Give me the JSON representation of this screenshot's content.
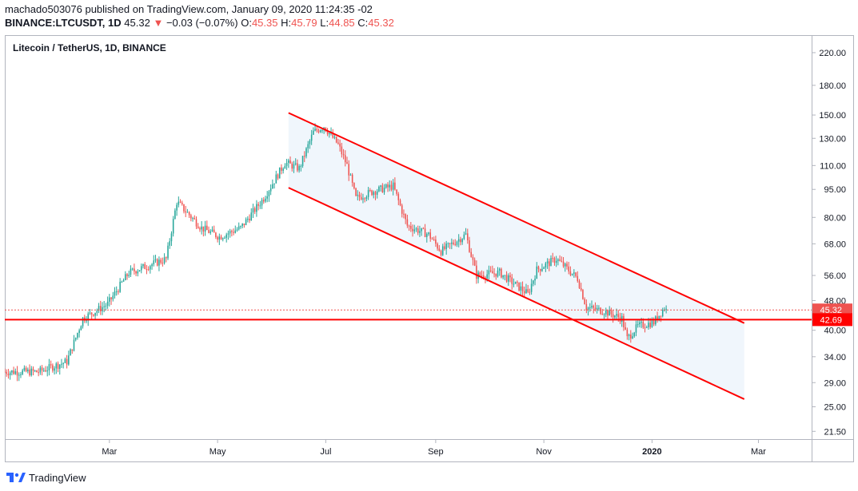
{
  "header": {
    "publisher_line": "machado503076 published on TradingView.com, January 09, 2020 11:24:35 -02",
    "symbol": "BINANCE:LTCUSDT, 1D",
    "last": "45.32",
    "arrow": "▼",
    "change": "−0.03 (−0.07%)",
    "o_label": "O:",
    "o_value": "45.35",
    "h_label": "H:",
    "h_value": "45.79",
    "l_label": "L:",
    "l_value": "44.85",
    "c_label": "C:",
    "c_value": "45.32"
  },
  "footer": {
    "brand": "TradingView"
  },
  "colors": {
    "up": "#26a69a",
    "down": "#ef5350",
    "channel": "#ff0000",
    "channel_fill": "#eaf2fb"
  },
  "chart_data": {
    "type": "candlestick",
    "title": "Litecoin / TetherUS, 1D, BINANCE",
    "y_scale": "log",
    "ylim": [
      20.5,
      245
    ],
    "y_ticks": [
      "220.00",
      "180.00",
      "150.00",
      "130.00",
      "110.00",
      "95.00",
      "80.00",
      "68.00",
      "56.00",
      "48.00",
      "40.00",
      "34.00",
      "29.00",
      "25.00",
      "21.50"
    ],
    "x_range": [
      "2019-01-01",
      "2020-03-31"
    ],
    "x_ticks": [
      {
        "date": "2019-03-01",
        "label": "Mar"
      },
      {
        "date": "2019-05-01",
        "label": "May"
      },
      {
        "date": "2019-07-01",
        "label": "Jul"
      },
      {
        "date": "2019-09-01",
        "label": "Sep"
      },
      {
        "date": "2019-11-01",
        "label": "Nov"
      },
      {
        "date": "2020-01-01",
        "label": "2020"
      },
      {
        "date": "2020-03-01",
        "label": "Mar"
      }
    ],
    "price_labels": [
      {
        "value": 45.32,
        "text": "45.32",
        "type": "last"
      },
      {
        "value": 42.69,
        "text": "42.69",
        "type": "support"
      }
    ],
    "support_line": 42.69,
    "channel": {
      "upper": [
        {
          "date": "2019-06-10",
          "value": 152
        },
        {
          "date": "2020-02-22",
          "value": 41.8
        }
      ],
      "lower": [
        {
          "date": "2019-06-10",
          "value": 96
        },
        {
          "date": "2020-02-22",
          "value": 26.2
        }
      ]
    },
    "price_path": [
      {
        "date": "2019-01-01",
        "value": 31
      },
      {
        "date": "2019-01-20",
        "value": 31
      },
      {
        "date": "2019-02-05",
        "value": 33
      },
      {
        "date": "2019-02-14",
        "value": 43
      },
      {
        "date": "2019-02-28",
        "value": 47
      },
      {
        "date": "2019-03-12",
        "value": 57
      },
      {
        "date": "2019-03-25",
        "value": 60
      },
      {
        "date": "2019-04-02",
        "value": 62
      },
      {
        "date": "2019-04-08",
        "value": 88
      },
      {
        "date": "2019-04-22",
        "value": 75
      },
      {
        "date": "2019-05-02",
        "value": 71
      },
      {
        "date": "2019-05-14",
        "value": 75
      },
      {
        "date": "2019-05-27",
        "value": 90
      },
      {
        "date": "2019-06-08",
        "value": 112
      },
      {
        "date": "2019-06-16",
        "value": 108
      },
      {
        "date": "2019-06-24",
        "value": 135
      },
      {
        "date": "2019-06-30",
        "value": 140
      },
      {
        "date": "2019-07-08",
        "value": 125
      },
      {
        "date": "2019-07-13",
        "value": 110
      },
      {
        "date": "2019-07-18",
        "value": 90
      },
      {
        "date": "2019-07-28",
        "value": 94
      },
      {
        "date": "2019-08-08",
        "value": 97
      },
      {
        "date": "2019-08-16",
        "value": 76
      },
      {
        "date": "2019-08-28",
        "value": 72
      },
      {
        "date": "2019-09-04",
        "value": 65
      },
      {
        "date": "2019-09-18",
        "value": 72
      },
      {
        "date": "2019-09-24",
        "value": 56
      },
      {
        "date": "2019-10-07",
        "value": 57
      },
      {
        "date": "2019-10-23",
        "value": 50
      },
      {
        "date": "2019-10-28",
        "value": 58
      },
      {
        "date": "2019-11-08",
        "value": 62
      },
      {
        "date": "2019-11-20",
        "value": 55
      },
      {
        "date": "2019-11-25",
        "value": 46
      },
      {
        "date": "2019-12-05",
        "value": 45
      },
      {
        "date": "2019-12-15",
        "value": 43
      },
      {
        "date": "2019-12-18",
        "value": 38
      },
      {
        "date": "2019-12-24",
        "value": 41
      },
      {
        "date": "2020-01-02",
        "value": 42
      },
      {
        "date": "2020-01-08",
        "value": 46
      },
      {
        "date": "2020-01-09",
        "value": 45.32
      }
    ]
  }
}
